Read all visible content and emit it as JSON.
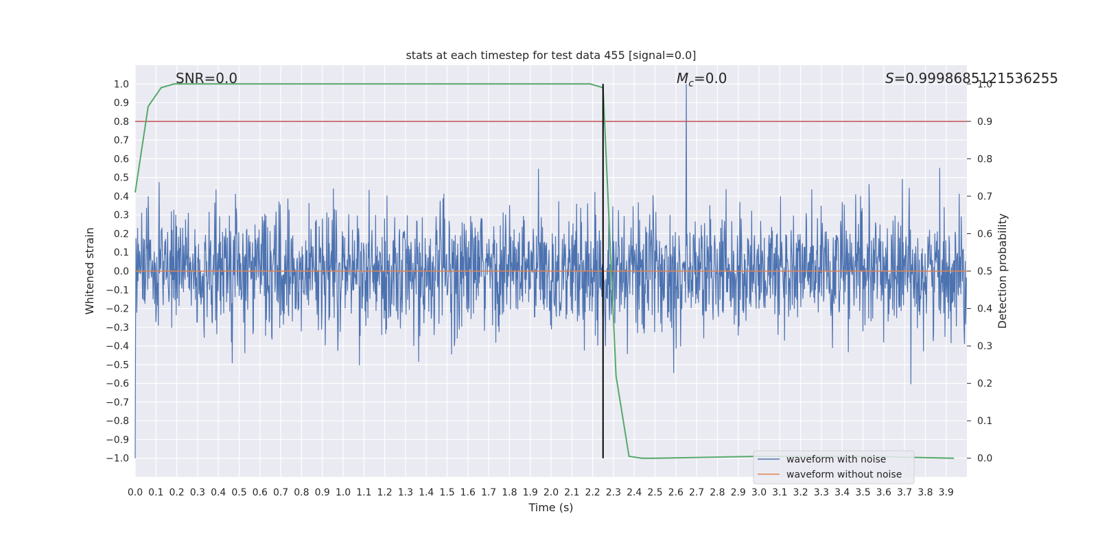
{
  "chart_data": {
    "type": "line",
    "title": "stats at each timestep for test data 455 [signal=0.0]",
    "xlabel": "Time (s)",
    "ylabel_left": "Whitened strain",
    "ylabel_right": "Detection probability",
    "xlim": [
      0.0,
      4.0
    ],
    "ylim_left": [
      -1.1,
      1.1
    ],
    "ylim_right": [
      -0.05,
      1.05
    ],
    "x_ticks": [
      "0.0",
      "0.1",
      "0.2",
      "0.3",
      "0.4",
      "0.5",
      "0.6",
      "0.7",
      "0.8",
      "0.9",
      "1.0",
      "1.1",
      "1.2",
      "1.3",
      "1.4",
      "1.5",
      "1.6",
      "1.7",
      "1.8",
      "1.9",
      "2.0",
      "2.1",
      "2.2",
      "2.3",
      "2.4",
      "2.5",
      "2.6",
      "2.7",
      "2.8",
      "2.9",
      "3.0",
      "3.1",
      "3.2",
      "3.3",
      "3.4",
      "3.5",
      "3.6",
      "3.7",
      "3.8",
      "3.9"
    ],
    "y_ticks_left": [
      "−1.0",
      "−0.9",
      "−0.8",
      "−0.7",
      "−0.6",
      "−0.5",
      "−0.4",
      "−0.3",
      "−0.2",
      "−0.1",
      "0.0",
      "0.1",
      "0.2",
      "0.3",
      "0.4",
      "0.5",
      "0.6",
      "0.7",
      "0.8",
      "0.9",
      "1.0"
    ],
    "y_ticks_right": [
      "0.0",
      "0.1",
      "0.2",
      "0.3",
      "0.4",
      "0.5",
      "0.6",
      "0.7",
      "0.8",
      "0.9",
      "1.0"
    ],
    "grid": true,
    "legend_position": "lower-right",
    "annotations": {
      "snr": "SNR=0.0",
      "mc_symbol": "M",
      "mc_sub": "c",
      "mc_value": "=0.0",
      "s_symbol": "S",
      "s_value": "=0.9998685121536255"
    },
    "series": [
      {
        "name": "waveform with noise",
        "color": "#4c72b0",
        "kind": "noise",
        "amplitude_typical": 0.3,
        "min": -1.0,
        "max": 1.0,
        "sample_rate_hz": 512
      },
      {
        "name": "waveform without noise",
        "color": "#dd8452",
        "x": [
          0.0,
          4.0
        ],
        "y": [
          0.0,
          0.0
        ]
      }
    ],
    "detection_probability": {
      "color": "#55a868",
      "x": [
        0.0,
        0.0625,
        0.125,
        0.1875,
        0.25,
        0.5,
        1.0,
        1.5,
        2.0,
        2.1875,
        2.25,
        2.3125,
        2.375,
        2.4375,
        2.5,
        3.0,
        3.5,
        3.9375
      ],
      "y": [
        0.71,
        0.94,
        0.99,
        1.0,
        1.0,
        1.0,
        1.0,
        1.0,
        1.0,
        1.0,
        0.99,
        0.22,
        0.005,
        0.0,
        0.0,
        0.005,
        0.005,
        0.0
      ]
    },
    "threshold": {
      "value": 0.9,
      "axis": "right",
      "color": "#c44e52"
    },
    "vline": {
      "x": 2.25,
      "color": "#000000",
      "ymin": 0.0,
      "ymax": 1.0
    }
  }
}
